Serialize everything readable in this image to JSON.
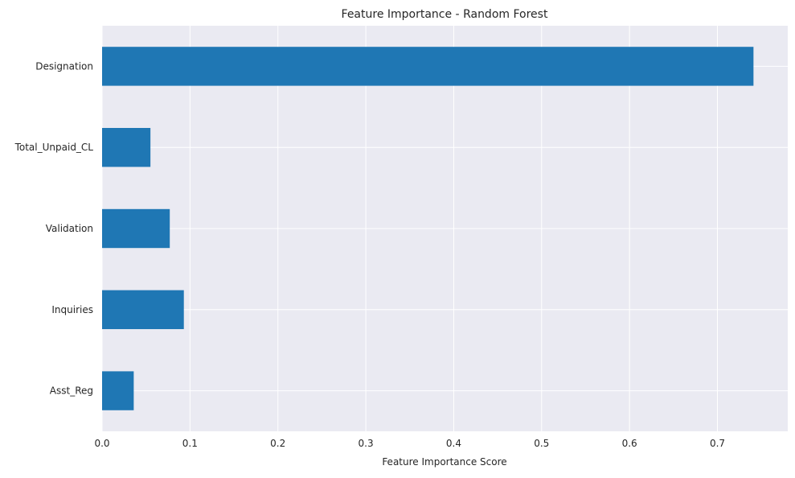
{
  "chart_data": {
    "type": "bar",
    "orientation": "horizontal",
    "title": "Feature Importance - Random Forest",
    "xlabel": "Feature Importance Score",
    "ylabel": "",
    "categories": [
      "Designation",
      "Total_Unpaid_CL",
      "Validation",
      "Inquiries",
      "Asst_Reg"
    ],
    "values": [
      0.741,
      0.055,
      0.077,
      0.093,
      0.036
    ],
    "xlim": [
      0,
      0.78
    ],
    "xticks": [
      "0.0",
      "0.1",
      "0.2",
      "0.3",
      "0.4",
      "0.5",
      "0.6",
      "0.7"
    ],
    "grid": true,
    "legend": "none",
    "colors": {
      "bar": "#1f77b4",
      "plot_background": "#eaeaf2",
      "grid": "#ffffff",
      "text": "#262626"
    }
  }
}
